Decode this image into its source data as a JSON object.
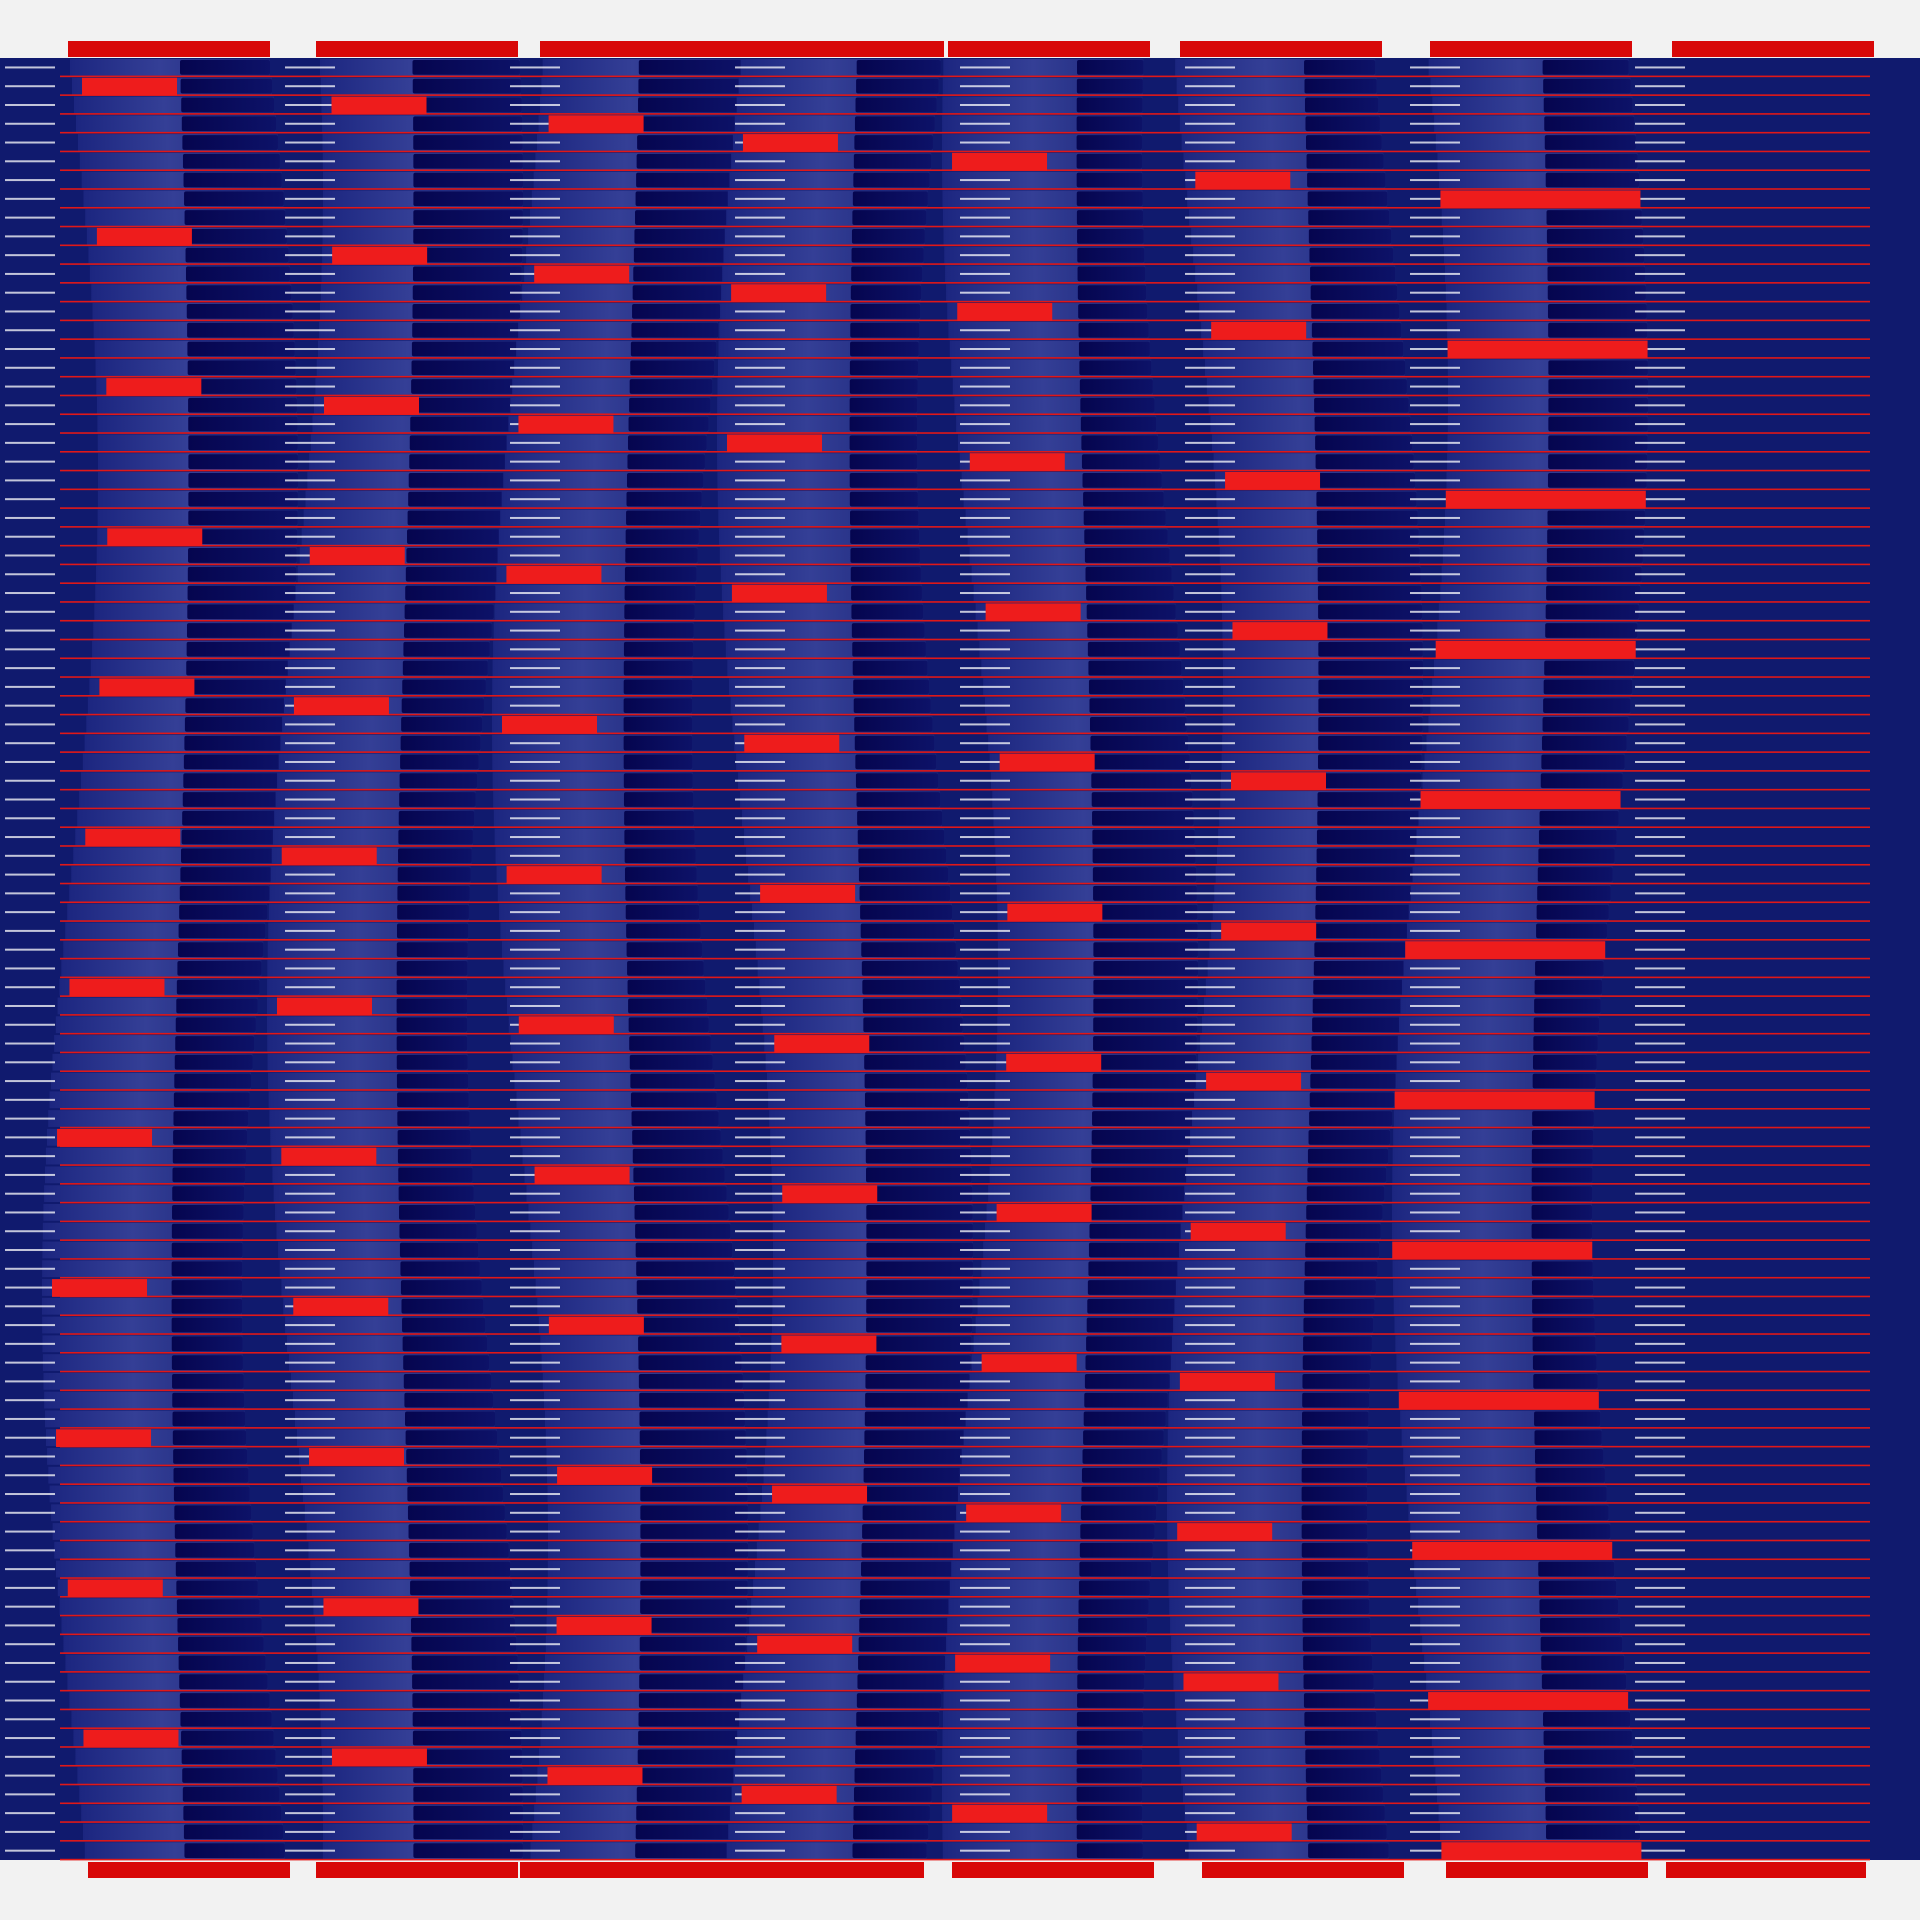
{
  "artwork": {
    "description_colors": {
      "background": "#f2f2f2",
      "field": "#101a6e",
      "band_light": "#2e3a92",
      "band_dark": "#07075a",
      "rule": "#e01818",
      "highlight": "#ffffff",
      "accent_red": "#ee1c1c",
      "accent_red_dark": "#d80808"
    },
    "columns": 7,
    "rows": 96
  }
}
